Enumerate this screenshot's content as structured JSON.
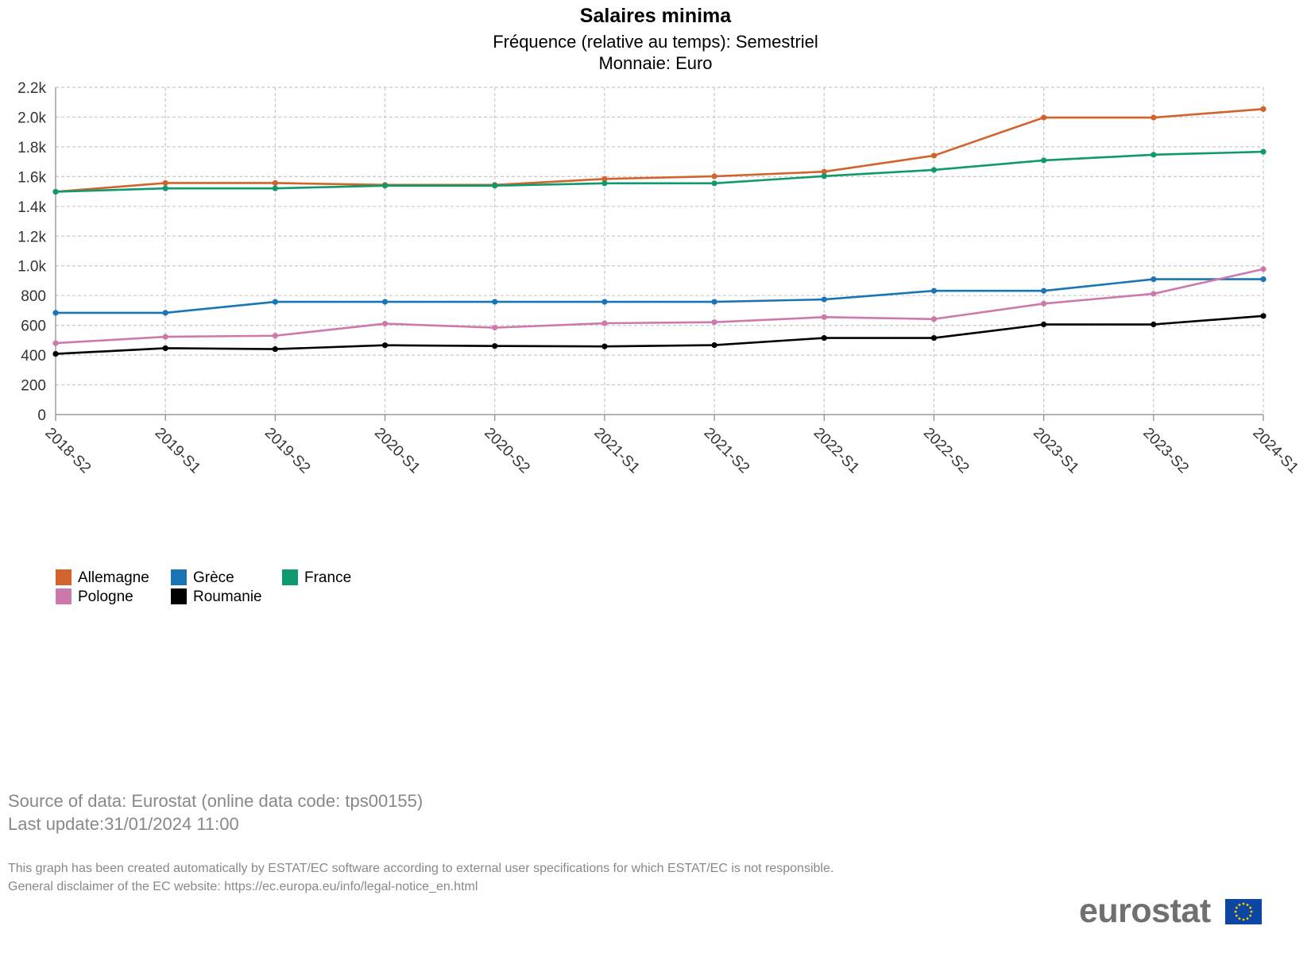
{
  "title": "Salaires minima",
  "subtitle_frequency": "Fréquence (relative au temps): Semestriel",
  "subtitle_currency": "Monnaie: Euro",
  "chart_data": {
    "type": "line",
    "categories": [
      "2018-S2",
      "2019-S1",
      "2019-S2",
      "2020-S1",
      "2020-S2",
      "2021-S1",
      "2021-S2",
      "2022-S1",
      "2022-S2",
      "2023-S1",
      "2023-S2",
      "2024-S1"
    ],
    "ylim": [
      0,
      2200
    ],
    "yticks": [
      0,
      200,
      400,
      600,
      800,
      1000,
      1200,
      1400,
      1600,
      1800,
      2000,
      2200
    ],
    "ytick_labels": [
      "0",
      "200",
      "400",
      "600",
      "800",
      "1.0k",
      "1.2k",
      "1.4k",
      "1.6k",
      "1.8k",
      "2.0k",
      "2.2k"
    ],
    "grid": true,
    "legend_position": "bottom-left",
    "series": [
      {
        "name": "Allemagne",
        "color": "#d2632d",
        "values": [
          1498,
          1557,
          1557,
          1544,
          1544,
          1584,
          1602,
          1633,
          1741,
          1997,
          1997,
          2054
        ]
      },
      {
        "name": "Grèce",
        "color": "#1a75b5",
        "values": [
          684,
          684,
          758,
          758,
          758,
          758,
          758,
          774,
          832,
          832,
          910,
          910
        ]
      },
      {
        "name": "France",
        "color": "#0e9a6e",
        "values": [
          1498,
          1521,
          1521,
          1539,
          1539,
          1555,
          1555,
          1603,
          1645,
          1709,
          1747,
          1767
        ]
      },
      {
        "name": "Pologne",
        "color": "#cd79ab",
        "values": [
          480,
          523,
          530,
          611,
          584,
          614,
          621,
          655,
          642,
          746,
          812,
          978
        ]
      },
      {
        "name": "Roumanie",
        "color": "#000000",
        "values": [
          408,
          446,
          440,
          466,
          461,
          458,
          467,
          515,
          515,
          606,
          606,
          663
        ]
      }
    ]
  },
  "source_line1": "Source of data: Eurostat (online data code: tps00155)",
  "source_line2": "Last update:31/01/2024 11:00",
  "disclaimer_line1": "This graph has been created automatically by ESTAT/EC software according to external user specifications for which ESTAT/EC is not responsible.",
  "disclaimer_line2": "General disclaimer of the EC website: https://ec.europa.eu/info/legal-notice_en.html",
  "logo_text": "eurostat",
  "flag_color": "#0e47a3",
  "star_color": "#ffcc00"
}
